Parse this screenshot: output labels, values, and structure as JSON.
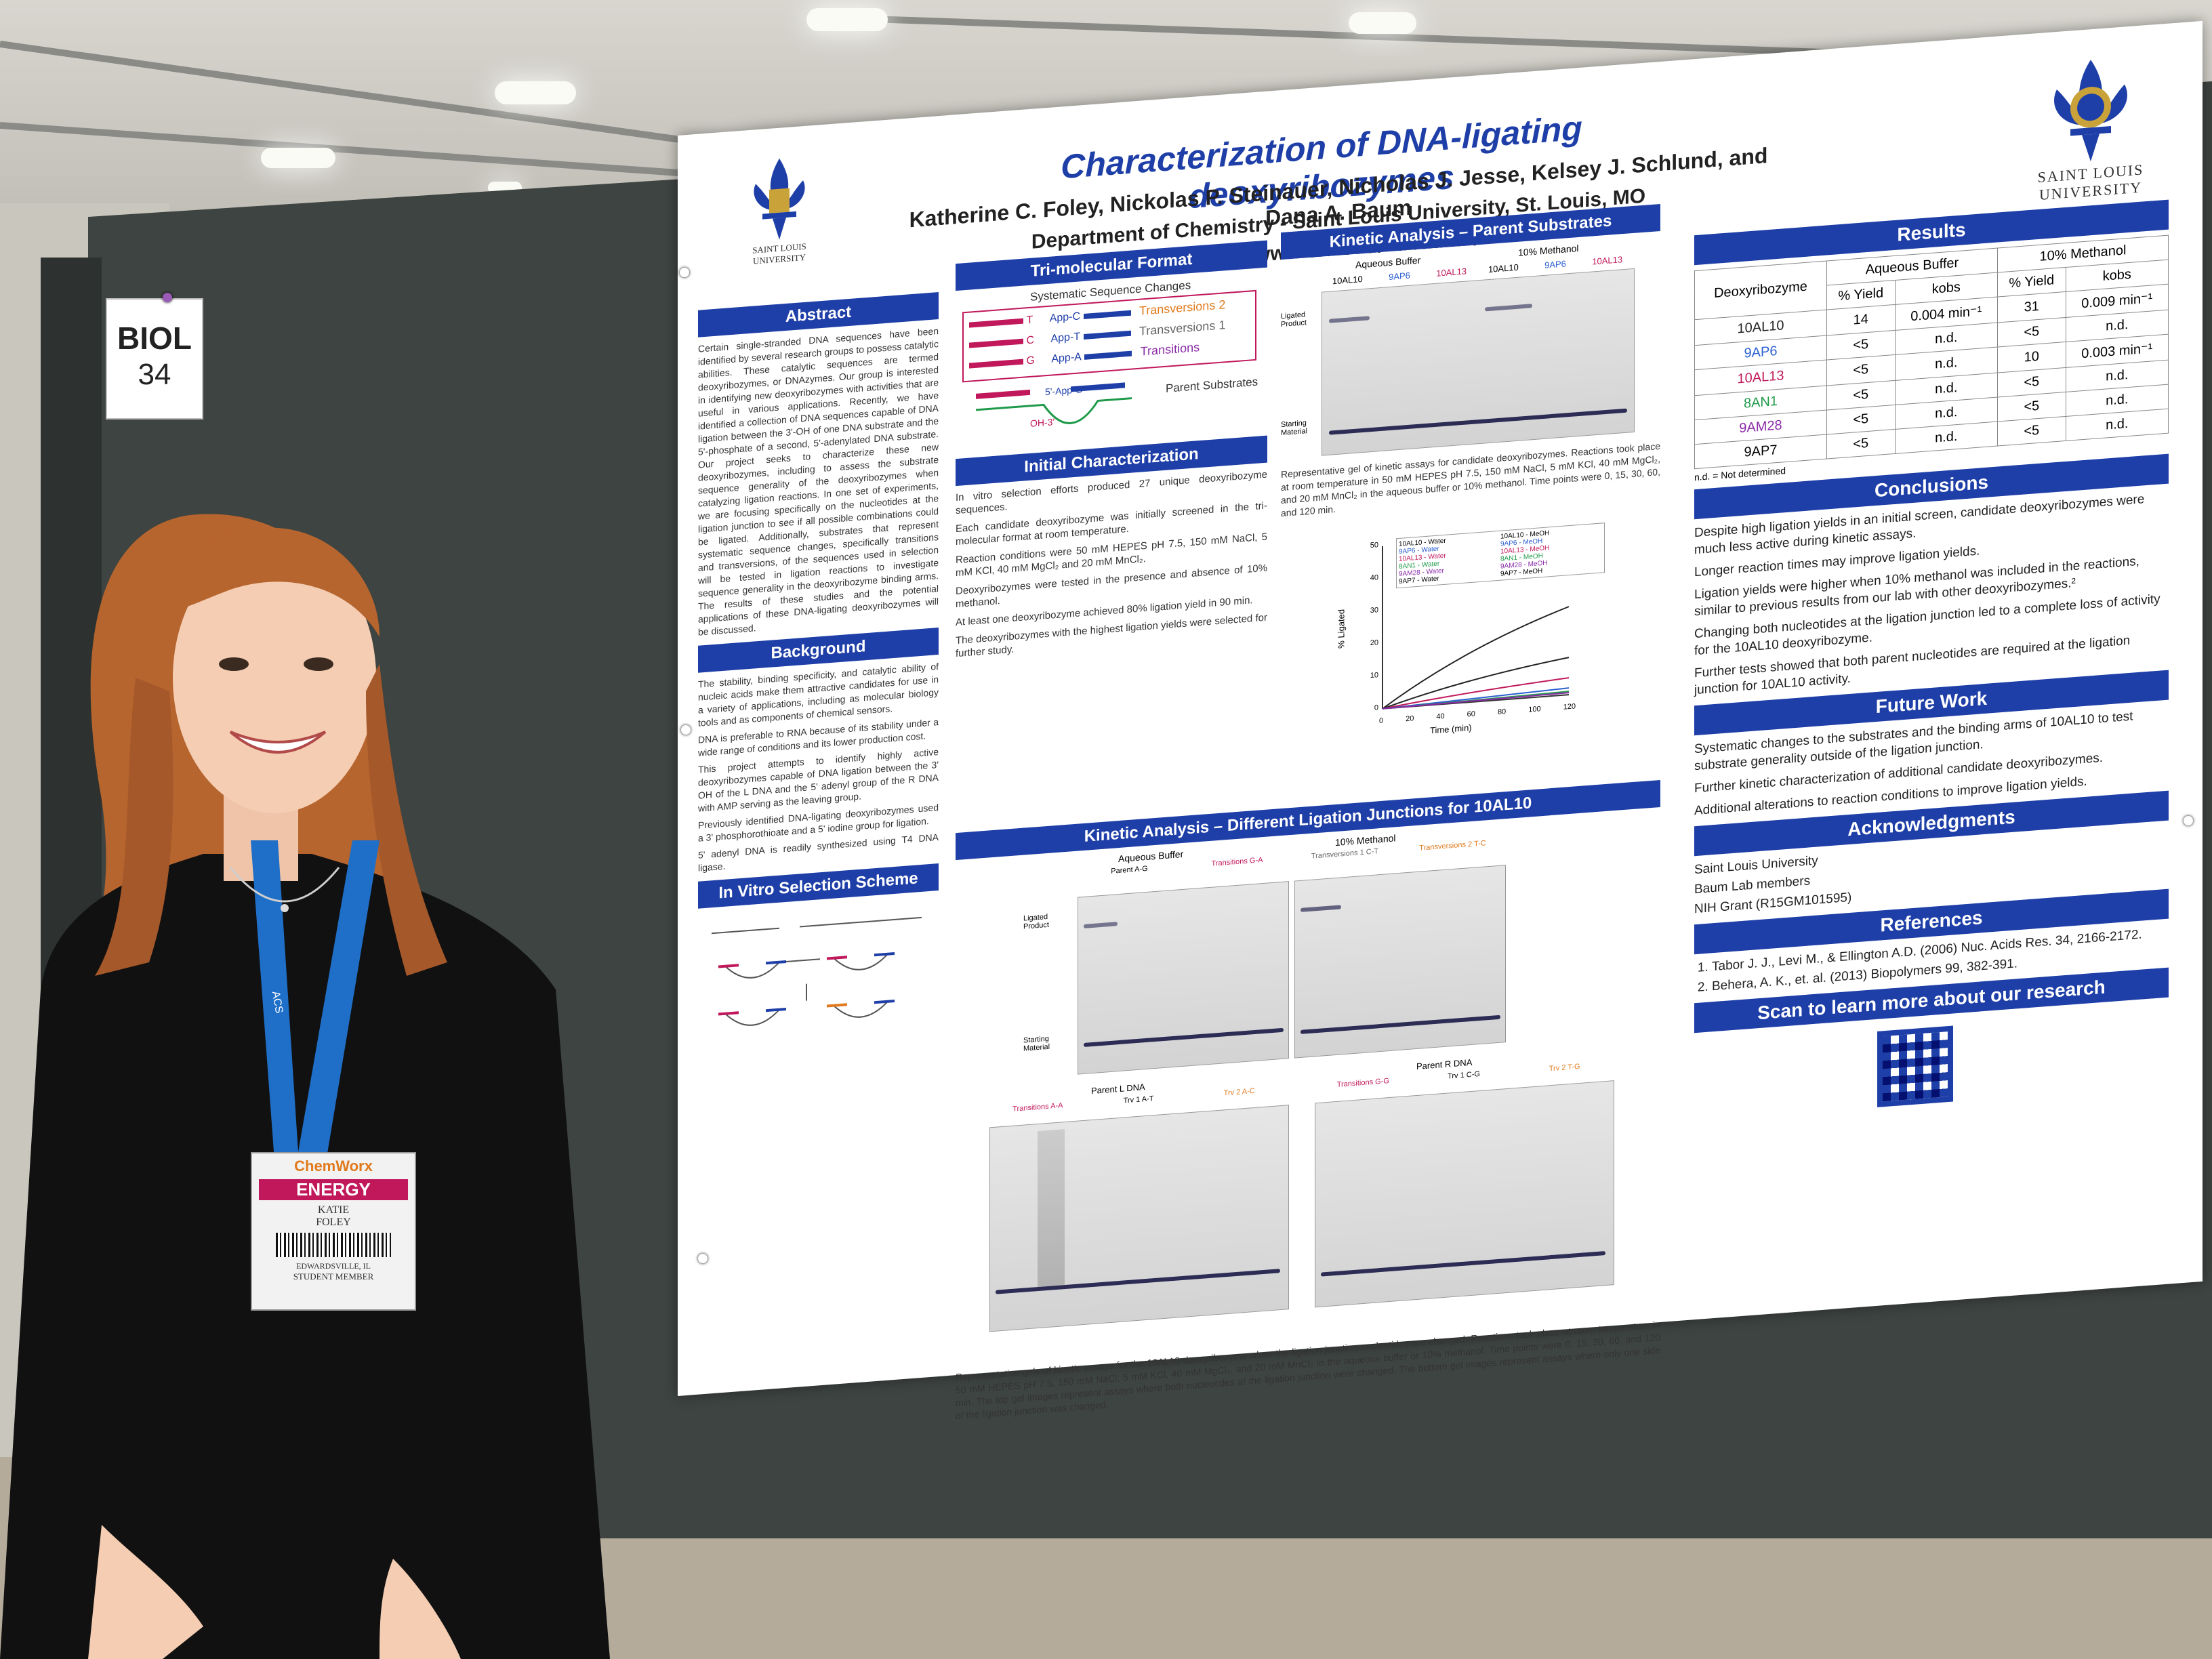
{
  "sign": {
    "line1": "BIOL",
    "line2": "34"
  },
  "poster": {
    "title": "Characterization of DNA-ligating deoxyribozymes",
    "authors": "Katherine C. Foley, Nickolas P. Steinauer, Nicholas J. Jesse, Kelsey J. Schlund, and Dana A. Baum",
    "dept": "Department of Chemistry - Saint Louis University, St. Louis, MO",
    "url": "http://www.slu.edu/~dbaum1/",
    "logo_small": "SAINT LOUIS UNIVERSITY",
    "logo_large": "SAINT LOUIS UNIVERSITY",
    "sections": {
      "abstract": "Abstract",
      "background": "Background",
      "selection": "In Vitro Selection Scheme",
      "trimolecular": "Tri-molecular Format",
      "initial": "Initial Characterization",
      "kinetic_parent": "Kinetic Analysis – Parent Substrates",
      "kinetic_junctions": "Kinetic Analysis – Different Ligation Junctions for 10AL10",
      "results": "Results",
      "conclusions": "Conclusions",
      "future": "Future Work",
      "ack": "Acknowledgments",
      "refs": "References",
      "scan": "Scan to learn more about our research"
    },
    "abstract_text": "Certain single-stranded DNA sequences have been identified by several research groups to possess catalytic abilities. These catalytic sequences are termed deoxyribozymes, or DNAzymes. Our group is interested in identifying new deoxyribozymes with activities that are useful in various applications. Recently, we have identified a collection of DNA sequences capable of DNA ligation between the 3'-OH of one DNA substrate and the 5'-phosphate of a second, 5'-adenylated DNA substrate. Our project seeks to characterize these new deoxyribozymes, including to assess the substrate sequence generality of the deoxyribozymes when catalyzing ligation reactions. In one set of experiments, we are focusing specifically on the nucleotides at the ligation junction to see if all possible combinations could be ligated. Additionally, substrates that represent systematic sequence changes, specifically transitions and transversions, of the sequences used in selection will be tested in ligation reactions to investigate sequence generality in the deoxyribozyme binding arms. The results of these studies and the potential applications of these DNA-ligating deoxyribozymes will be discussed.",
    "background_bullets": [
      "The stability, binding specificity, and catalytic ability of nucleic acids make them attractive candidates for use in a variety of applications, including as molecular biology tools and as components of chemical sensors.",
      "DNA is preferable to RNA because of its stability under a wide range of conditions and its lower production cost.",
      "This project attempts to identify highly active deoxyribozymes capable of DNA ligation between the 3' OH of the L DNA and the 5' adenyl group of the R DNA with AMP serving as the leaving group.",
      "Previously identified DNA-ligating deoxyribozymes used a 3' phosphorothioate and a 5' iodine group for ligation.",
      "5' adenyl DNA is readily synthesized using T4 DNA ligase."
    ],
    "trimolecular": {
      "caption": "Systematic Sequence Changes",
      "rows": [
        {
          "base": "T",
          "app": "App-C",
          "label": "Transversions 2"
        },
        {
          "base": "C",
          "app": "App-T",
          "label": "Transversions 1"
        },
        {
          "base": "G",
          "app": "App-A",
          "label": "Transitions"
        }
      ],
      "parent": "Parent Substrates",
      "app_g": "5'-App-G",
      "oh": "OH-3'"
    },
    "initial_bullets": [
      "In vitro selection efforts produced 27 unique deoxyribozyme sequences.",
      "Each candidate deoxyribozyme was initially screened in the tri-molecular format at room temperature.",
      "Reaction conditions were 50 mM HEPES pH 7.5, 150 mM NaCl, 5 mM KCl, 40 mM MgCl₂ and 20 mM MnCl₂.",
      "Deoxyribozymes were tested in the presence and absence of 10% methanol.",
      "At least one deoxyribozyme achieved 80% ligation yield in 90 min.",
      "The deoxyribozymes with the highest ligation yields were selected for further study."
    ],
    "parent_gel": {
      "aqueous": "Aqueous Buffer",
      "methanol": "10% Methanol",
      "lanes": [
        "10AL10",
        "9AP6",
        "10AL13",
        "10AL10",
        "9AP6",
        "10AL13"
      ],
      "ligated": "Ligated Product",
      "starting": "Starting Material",
      "caption": "Representative gel of kinetic assays for candidate deoxyribozymes. Reactions took place at room temperature in 50 mM HEPES pH 7.5, 150 mM NaCl, 5 mM KCl, 40 mM MgCl₂, and 20 mM MnCl₂ in the aqueous buffer or 10% methanol. Time points were 0, 15, 30, 60, and 120 min."
    },
    "results": {
      "headers": [
        "Deoxyribozyme",
        "Aqueous Buffer",
        "10% Methanol"
      ],
      "subheaders": [
        "% Yield",
        "kobs",
        "% Yield",
        "kobs"
      ],
      "rows": [
        {
          "name": "10AL10",
          "color": "#222222",
          "y1": "14",
          "k1": "0.004 min⁻¹",
          "y2": "31",
          "k2": "0.009 min⁻¹"
        },
        {
          "name": "9AP6",
          "color": "#2a5fd0",
          "y1": "<5",
          "k1": "n.d.",
          "y2": "<5",
          "k2": "n.d."
        },
        {
          "name": "10AL13",
          "color": "#c0185a",
          "y1": "<5",
          "k1": "n.d.",
          "y2": "10",
          "k2": "0.003 min⁻¹"
        },
        {
          "name": "8AN1",
          "color": "#1f9a4a",
          "y1": "<5",
          "k1": "n.d.",
          "y2": "<5",
          "k2": "n.d."
        },
        {
          "name": "9AM28",
          "color": "#8a2aa8",
          "y1": "<5",
          "k1": "n.d.",
          "y2": "<5",
          "k2": "n.d."
        },
        {
          "name": "9AP7",
          "color": "#222222",
          "y1": "<5",
          "k1": "n.d.",
          "y2": "<5",
          "k2": "n.d."
        }
      ],
      "note": "n.d. = Not determined"
    },
    "conclusions": [
      "Despite high ligation yields in an initial screen, candidate deoxyribozymes were much less active during kinetic assays.",
      "Longer reaction times may improve ligation yields.",
      "Ligation yields were higher when 10% methanol was included in the reactions, similar to previous results from our lab with other deoxyribozymes.²",
      "Changing both nucleotides at the ligation junction led to a complete loss of activity for the 10AL10 deoxyribozyme.",
      "Further tests showed that both parent nucleotides are required at the ligation junction for 10AL10 activity."
    ],
    "future": [
      "Systematic changes to the substrates and the binding arms of 10AL10 to test substrate generality outside of the ligation junction.",
      "Further kinetic characterization of additional candidate deoxyribozymes.",
      "Additional alterations to reaction conditions to improve ligation yields."
    ],
    "ack": [
      "Saint Louis University",
      "Baum Lab members",
      "NIH Grant (R15GM101595)"
    ],
    "refs": [
      "Tabor J. J., Levi M., & Ellington A.D. (2006) Nuc. Acids Res. 34, 2166-2172.",
      "Behera, A. K., et. al. (2013) Biopolymers 99, 382-391."
    ],
    "junction_gels": {
      "aqueous": "Aqueous Buffer",
      "methanol": "10% Methanol",
      "top_lanes": [
        "Parent A-G",
        "Transitions G-A",
        "Transversions 1 C-T",
        "Transversions 2 T-C"
      ],
      "left_header": "Parent L DNA",
      "right_header": "Parent R DNA",
      "left_lanes": [
        "Transitions A-A",
        "Trv 1 A-T",
        "Trv 2 A-C"
      ],
      "right_lanes": [
        "Transitions G-G",
        "Trv 1 C-G",
        "Trv 2 T-G"
      ],
      "ligated": "Ligated Product",
      "starting": "Starting Material",
      "caption": "Representative gels of kinetic assays for the 10AL10 deoxyribozyme when the ligation junction nucleotides are changed. Reactions took place at room temperature in 50 mM HEPES pH 7.5, 150 mM NaCl, 5 mM KCl, 40 mM MgCl₂, and 20 mM MnCl₂ in the aqueous buffer or 10% methanol. Time points were 0, 15, 30, 60, and 120 min. The top gel images represent assays where both nucleotides at the ligation junction were changed. The bottom gel images represent assays where only one side of the ligation junction was changed."
    },
    "plot": {
      "ylabel": "% Ligated",
      "xlabel": "Time (min)",
      "yticks": [
        "50",
        "40",
        "30",
        "20",
        "10",
        "0"
      ],
      "xticks": [
        "0",
        "20",
        "40",
        "60",
        "80",
        "100",
        "120"
      ],
      "legend": [
        "10AL10 - Water",
        "9AP6 - Water",
        "10AL13 - Water",
        "8AN1 - Water",
        "9AM28 - Water",
        "9AP7 - Water",
        "10AL10 - MeOH",
        "9AP6 - MeOH",
        "10AL13 - MeOH",
        "8AN1 - MeOH",
        "9AM28 - MeOH",
        "9AP7 - MeOH"
      ]
    }
  },
  "badge": {
    "brand": "ChemWorx",
    "theme": "ENERGY",
    "first": "KATIE",
    "last": "FOLEY",
    "city": "EDWARDSVILLE, IL",
    "role": "STUDENT MEMBER",
    "lanyard": "ACS"
  },
  "colors": {
    "poster_blue": "#1f3fa8",
    "board": "#3e4441",
    "lanyard": "#1f6fc8",
    "hair": "#b7652e"
  }
}
